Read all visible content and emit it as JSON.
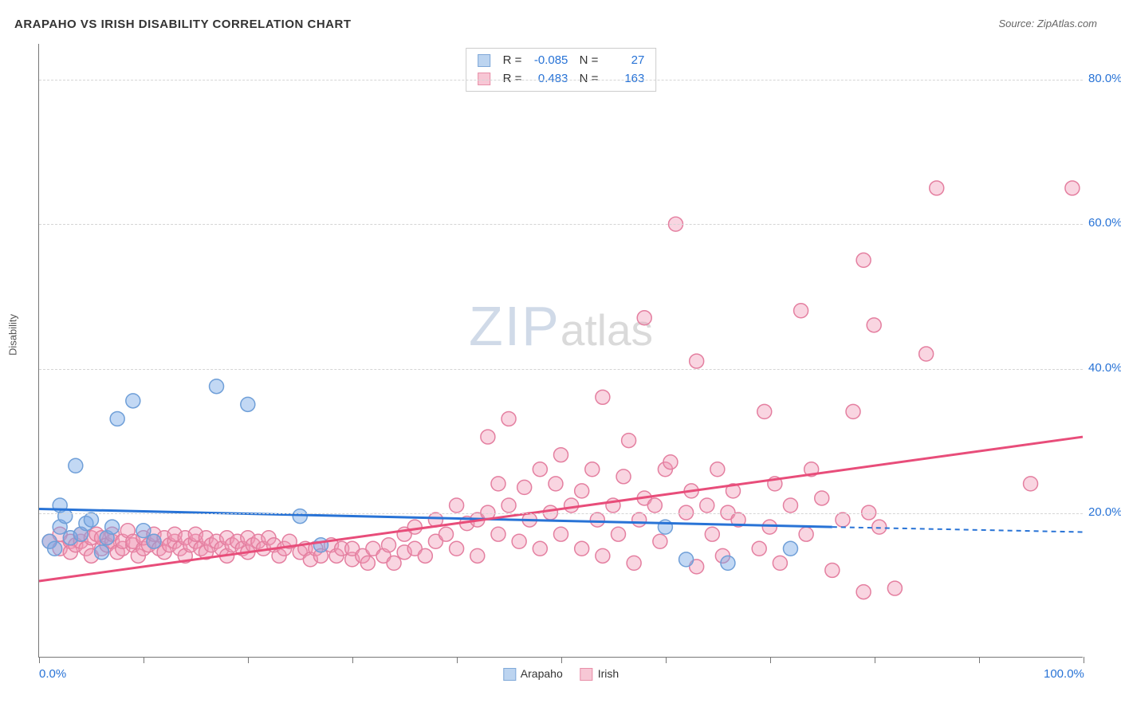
{
  "title": "ARAPAHO VS IRISH DISABILITY CORRELATION CHART",
  "source": "Source: ZipAtlas.com",
  "ylabel": "Disability",
  "watermark_left": "ZIP",
  "watermark_right": "atlas",
  "chart": {
    "type": "scatter",
    "xlim": [
      0,
      100
    ],
    "ylim": [
      0,
      85
    ],
    "x_ticks": [
      0,
      10,
      20,
      30,
      40,
      50,
      60,
      70,
      80,
      90,
      100
    ],
    "y_gridlines": [
      20,
      40,
      60,
      80
    ],
    "x_axis_labels": [
      {
        "value": 0,
        "text": "0.0%"
      },
      {
        "value": 100,
        "text": "100.0%"
      }
    ],
    "y_axis_labels": [
      {
        "value": 20,
        "text": "20.0%"
      },
      {
        "value": 40,
        "text": "40.0%"
      },
      {
        "value": 60,
        "text": "60.0%"
      },
      {
        "value": 80,
        "text": "80.0%"
      }
    ],
    "background_color": "#ffffff",
    "grid_color": "#d5d5d5",
    "axis_color": "#777777",
    "marker_radius": 9,
    "marker_stroke_width": 1.5,
    "trend_line_width": 3,
    "series": [
      {
        "name": "Arapaho",
        "fill": "rgba(120,168,230,0.45)",
        "stroke": "#6f9fd8",
        "swatch_fill": "#bcd4f0",
        "swatch_stroke": "#7fa8d8",
        "R": "-0.085",
        "N": "27",
        "trend": {
          "x1": 0,
          "y1": 20.5,
          "x2": 76,
          "y2": 18.0,
          "dash_x2": 100,
          "dash_y2": 17.3,
          "color": "#2873d6"
        },
        "points": [
          [
            1,
            16
          ],
          [
            1.5,
            15
          ],
          [
            2,
            21
          ],
          [
            2,
            18
          ],
          [
            2.5,
            19.5
          ],
          [
            3,
            16.5
          ],
          [
            3.5,
            26.5
          ],
          [
            4,
            17
          ],
          [
            4.5,
            18.5
          ],
          [
            5,
            19
          ],
          [
            6,
            14.5
          ],
          [
            6.5,
            16.5
          ],
          [
            7,
            18
          ],
          [
            7.5,
            33
          ],
          [
            9,
            35.5
          ],
          [
            10,
            17.5
          ],
          [
            11,
            16
          ],
          [
            17,
            37.5
          ],
          [
            20,
            35
          ],
          [
            25,
            19.5
          ],
          [
            27,
            15.5
          ],
          [
            60,
            18
          ],
          [
            62,
            13.5
          ],
          [
            66,
            13
          ],
          [
            72,
            15
          ]
        ]
      },
      {
        "name": "Irish",
        "fill": "rgba(240,150,180,0.40)",
        "stroke": "#e47fa0",
        "swatch_fill": "#f7c7d5",
        "swatch_stroke": "#e88fa8",
        "R": "0.483",
        "N": "163",
        "trend": {
          "x1": 0,
          "y1": 10.5,
          "x2": 100,
          "y2": 30.5,
          "color": "#e84d7a"
        },
        "points": [
          [
            1,
            16
          ],
          [
            2,
            15
          ],
          [
            2,
            17
          ],
          [
            3,
            16
          ],
          [
            3,
            14.5
          ],
          [
            3.5,
            15.5
          ],
          [
            4,
            16
          ],
          [
            4,
            17
          ],
          [
            4.5,
            15
          ],
          [
            5,
            16.5
          ],
          [
            5,
            14
          ],
          [
            5.5,
            17
          ],
          [
            6,
            15
          ],
          [
            6,
            16.5
          ],
          [
            6.5,
            15.5
          ],
          [
            7,
            16
          ],
          [
            7,
            17
          ],
          [
            7.5,
            14.5
          ],
          [
            8,
            15
          ],
          [
            8,
            16
          ],
          [
            8.5,
            17.5
          ],
          [
            9,
            15.5
          ],
          [
            9,
            16
          ],
          [
            9.5,
            14
          ],
          [
            10,
            15
          ],
          [
            10,
            16.5
          ],
          [
            10.5,
            15.5
          ],
          [
            11,
            16
          ],
          [
            11,
            17
          ],
          [
            11.5,
            15
          ],
          [
            12,
            16.5
          ],
          [
            12,
            14.5
          ],
          [
            12.5,
            15.5
          ],
          [
            13,
            16
          ],
          [
            13,
            17
          ],
          [
            13.5,
            15
          ],
          [
            14,
            16.5
          ],
          [
            14,
            14
          ],
          [
            14.5,
            15.5
          ],
          [
            15,
            16
          ],
          [
            15,
            17
          ],
          [
            15.5,
            15
          ],
          [
            16,
            16.5
          ],
          [
            16,
            14.5
          ],
          [
            16.5,
            15.5
          ],
          [
            17,
            16
          ],
          [
            17.5,
            15
          ],
          [
            18,
            16.5
          ],
          [
            18,
            14
          ],
          [
            18.5,
            15.5
          ],
          [
            19,
            16
          ],
          [
            19.5,
            15
          ],
          [
            20,
            16.5
          ],
          [
            20,
            14.5
          ],
          [
            20.5,
            15.5
          ],
          [
            21,
            16
          ],
          [
            21.5,
            15
          ],
          [
            22,
            16.5
          ],
          [
            22.5,
            15.5
          ],
          [
            23,
            14
          ],
          [
            23.5,
            15
          ],
          [
            24,
            16
          ],
          [
            25,
            14.5
          ],
          [
            25.5,
            15
          ],
          [
            26,
            13.5
          ],
          [
            26.5,
            15
          ],
          [
            27,
            14
          ],
          [
            28,
            15.5
          ],
          [
            28.5,
            14
          ],
          [
            29,
            15
          ],
          [
            30,
            13.5
          ],
          [
            30,
            15
          ],
          [
            31,
            14
          ],
          [
            31.5,
            13
          ],
          [
            32,
            15
          ],
          [
            33,
            14
          ],
          [
            33.5,
            15.5
          ],
          [
            34,
            13
          ],
          [
            35,
            14.5
          ],
          [
            35,
            17
          ],
          [
            36,
            15
          ],
          [
            36,
            18
          ],
          [
            37,
            14
          ],
          [
            38,
            16
          ],
          [
            38,
            19
          ],
          [
            39,
            17
          ],
          [
            40,
            21
          ],
          [
            40,
            15
          ],
          [
            41,
            18.5
          ],
          [
            42,
            14
          ],
          [
            42,
            19
          ],
          [
            43,
            20
          ],
          [
            43,
            30.5
          ],
          [
            44,
            24
          ],
          [
            44,
            17
          ],
          [
            45,
            33
          ],
          [
            45,
            21
          ],
          [
            46,
            16
          ],
          [
            46.5,
            23.5
          ],
          [
            47,
            19
          ],
          [
            48,
            26
          ],
          [
            48,
            15
          ],
          [
            49,
            20
          ],
          [
            49.5,
            24
          ],
          [
            50,
            17
          ],
          [
            50,
            28
          ],
          [
            51,
            21
          ],
          [
            52,
            15
          ],
          [
            52,
            23
          ],
          [
            53,
            26
          ],
          [
            53.5,
            19
          ],
          [
            54,
            36
          ],
          [
            54,
            14
          ],
          [
            55,
            21
          ],
          [
            55.5,
            17
          ],
          [
            56,
            25
          ],
          [
            56.5,
            30
          ],
          [
            57,
            13
          ],
          [
            57.5,
            19
          ],
          [
            58,
            22
          ],
          [
            58,
            47
          ],
          [
            59,
            21
          ],
          [
            59.5,
            16
          ],
          [
            60,
            26
          ],
          [
            60.5,
            27
          ],
          [
            61,
            60
          ],
          [
            62,
            20
          ],
          [
            62.5,
            23
          ],
          [
            63,
            12.5
          ],
          [
            63,
            41
          ],
          [
            64,
            21
          ],
          [
            64.5,
            17
          ],
          [
            65,
            26
          ],
          [
            65.5,
            14
          ],
          [
            66,
            20
          ],
          [
            66.5,
            23
          ],
          [
            67,
            19
          ],
          [
            69,
            15
          ],
          [
            69.5,
            34
          ],
          [
            70,
            18
          ],
          [
            70.5,
            24
          ],
          [
            71,
            13
          ],
          [
            72,
            21
          ],
          [
            73,
            48
          ],
          [
            73.5,
            17
          ],
          [
            74,
            26
          ],
          [
            75,
            22
          ],
          [
            76,
            12
          ],
          [
            77,
            19
          ],
          [
            78,
            34
          ],
          [
            79,
            55
          ],
          [
            79.5,
            20
          ],
          [
            79,
            9
          ],
          [
            80,
            46
          ],
          [
            80.5,
            18
          ],
          [
            82,
            9.5
          ],
          [
            85,
            42
          ],
          [
            86,
            65
          ],
          [
            95,
            24
          ],
          [
            99,
            65
          ]
        ]
      }
    ],
    "legend_bottom": [
      {
        "label": "Arapaho",
        "series_idx": 0
      },
      {
        "label": "Irish",
        "series_idx": 1
      }
    ]
  }
}
